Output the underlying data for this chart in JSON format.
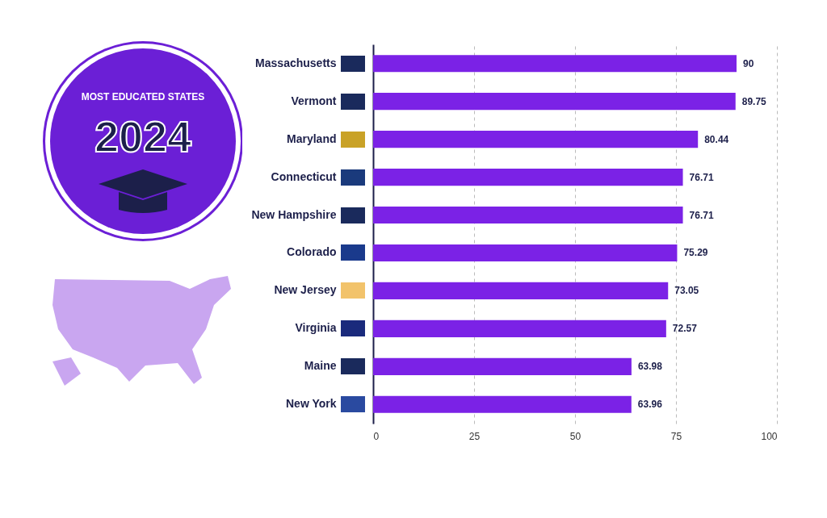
{
  "chart_data": {
    "type": "bar",
    "orientation": "horizontal",
    "title": "MOST EDUCATED STATES",
    "subtitle": "2024",
    "categories": [
      "Massachusetts",
      "Vermont",
      "Maryland",
      "Connecticut",
      "New Hampshire",
      "Colorado",
      "New Jersey",
      "Virginia",
      "Maine",
      "New York"
    ],
    "values": [
      90,
      89.75,
      80.44,
      76.71,
      76.71,
      75.29,
      73.05,
      72.57,
      63.98,
      63.96
    ],
    "color": "#7b22e6",
    "xlim": [
      0,
      100
    ],
    "xticks": [
      0,
      25,
      50,
      75,
      100
    ],
    "grid": "x",
    "data_labels": true
  }
}
